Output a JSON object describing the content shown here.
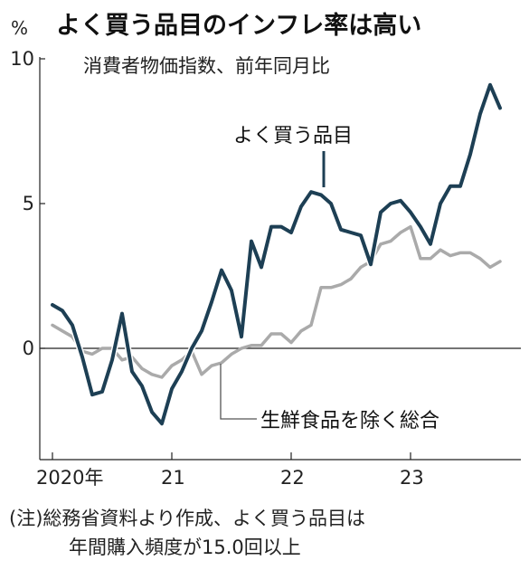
{
  "chart_data": {
    "type": "line",
    "title": "よく買う品目のインフレ率は高い",
    "subtitle": "消費者物価指数、前年同月比",
    "yunit": "%",
    "ylim": [
      -3.8,
      10
    ],
    "y_ticks": [
      {
        "value": 0,
        "label": "0"
      },
      {
        "value": 5,
        "label": "5"
      },
      {
        "value": 10,
        "label": "10"
      }
    ],
    "x_ticks": [
      {
        "value": 0,
        "label": "2020年"
      },
      {
        "value": 12,
        "label": "21"
      },
      {
        "value": 24,
        "label": "22"
      },
      {
        "value": 36,
        "label": "23"
      }
    ],
    "x_start": "2020-01",
    "series": [
      {
        "name": "よく買う品目",
        "color": "#1d3f54",
        "values": [
          1.5,
          1.3,
          0.8,
          -0.3,
          -1.6,
          -1.5,
          -0.4,
          1.2,
          -0.8,
          -1.3,
          -2.2,
          -2.6,
          -1.4,
          -0.8,
          0.0,
          0.6,
          1.6,
          2.7,
          2.0,
          0.4,
          3.7,
          2.8,
          4.2,
          4.2,
          4.0,
          4.9,
          5.4,
          5.3,
          5.0,
          4.1,
          4.0,
          3.9,
          2.9,
          4.7,
          5.0,
          5.1,
          4.7,
          4.2,
          3.6,
          5.0,
          5.6,
          5.6,
          6.7,
          8.1,
          9.1,
          8.3
        ]
      },
      {
        "name": "生鮮食品を除く総合",
        "color": "#aaaaaa",
        "values": [
          0.8,
          0.6,
          0.4,
          -0.1,
          -0.2,
          0.0,
          0.0,
          -0.4,
          -0.3,
          -0.7,
          -0.9,
          -1.0,
          -0.6,
          -0.4,
          -0.1,
          -0.9,
          -0.6,
          -0.5,
          -0.2,
          0.0,
          0.1,
          0.1,
          0.5,
          0.5,
          0.2,
          0.6,
          0.8,
          2.1,
          2.1,
          2.2,
          2.4,
          2.8,
          3.0,
          3.6,
          3.7,
          4.0,
          4.2,
          3.1,
          3.1,
          3.4,
          3.2,
          3.3,
          3.3,
          3.1,
          2.8,
          3.0
        ]
      }
    ],
    "annotations": [
      {
        "text": "よく買う品目",
        "series": 0
      },
      {
        "text": "生鮮食品を除く総合",
        "series": 1
      }
    ],
    "note": [
      "(注)総務省資料より作成、よく買う品目は",
      "年間購入頻度が15.0回以上"
    ]
  }
}
